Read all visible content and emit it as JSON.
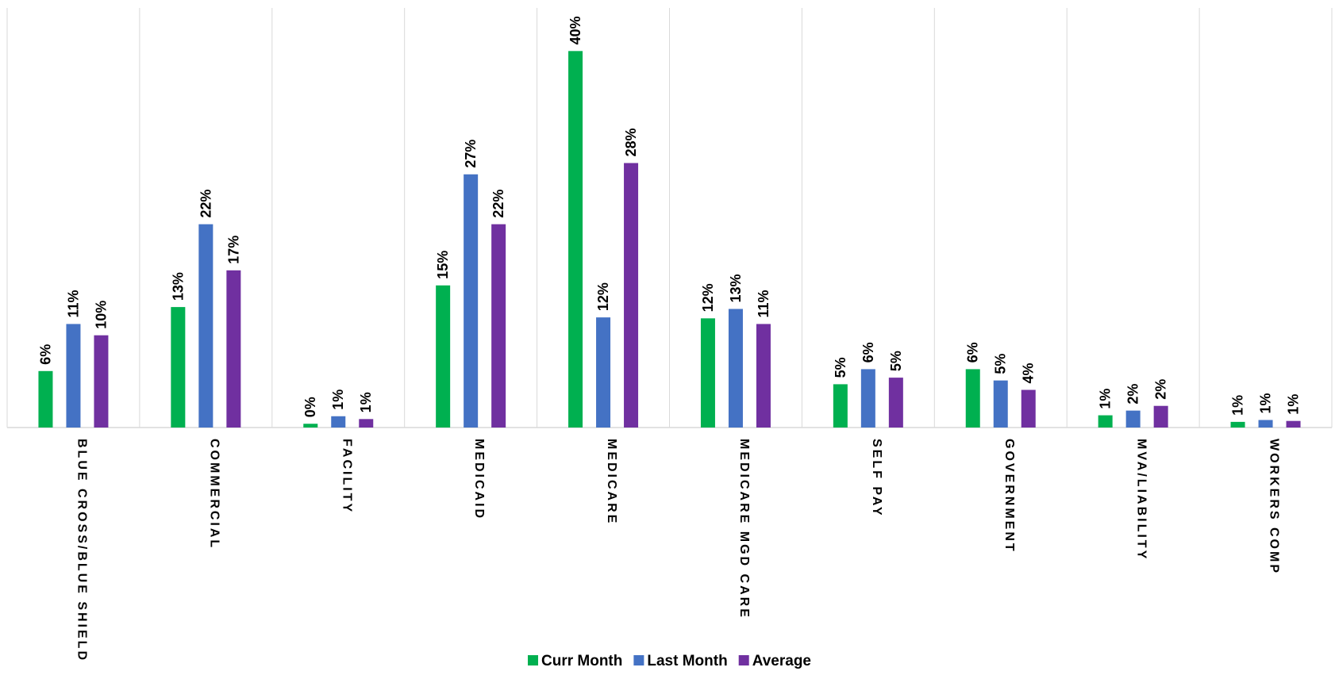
{
  "chart_data": {
    "type": "bar",
    "categories": [
      "BLUE CROSS/BLUE SHIELD",
      "COMMERCIAL",
      "FACILITY",
      "MEDICAID",
      "MEDICARE",
      "MEDICARE MGD CARE",
      "SELF PAY",
      "GOVERNMENT",
      "MVA/LIABILITY",
      "WORKERS COMP"
    ],
    "series": [
      {
        "name": "Curr Month",
        "color": "#00b050",
        "values": [
          6.0,
          12.8,
          0.4,
          15.1,
          40.0,
          11.6,
          4.6,
          6.2,
          1.3,
          0.6
        ],
        "value_labels": [
          "6%",
          "13%",
          "0%",
          "15%",
          "40%",
          "12%",
          "5%",
          "6%",
          "1%",
          "1%"
        ]
      },
      {
        "name": "Last Month",
        "color": "#4472c4",
        "values": [
          11.0,
          21.6,
          1.2,
          26.9,
          11.7,
          12.6,
          6.2,
          5.0,
          1.8,
          0.8
        ],
        "value_labels": [
          "11%",
          "22%",
          "1%",
          "27%",
          "12%",
          "13%",
          "6%",
          "5%",
          "2%",
          "1%"
        ]
      },
      {
        "name": "Average",
        "color": "#7030a0",
        "values": [
          9.8,
          16.7,
          0.9,
          21.6,
          28.1,
          11.0,
          5.3,
          4.0,
          2.3,
          0.7
        ],
        "value_labels": [
          "10%",
          "17%",
          "1%",
          "22%",
          "28%",
          "11%",
          "5%",
          "4%",
          "2%",
          "1%"
        ]
      }
    ],
    "ylim": [
      0,
      45
    ],
    "legend": "bottom"
  }
}
